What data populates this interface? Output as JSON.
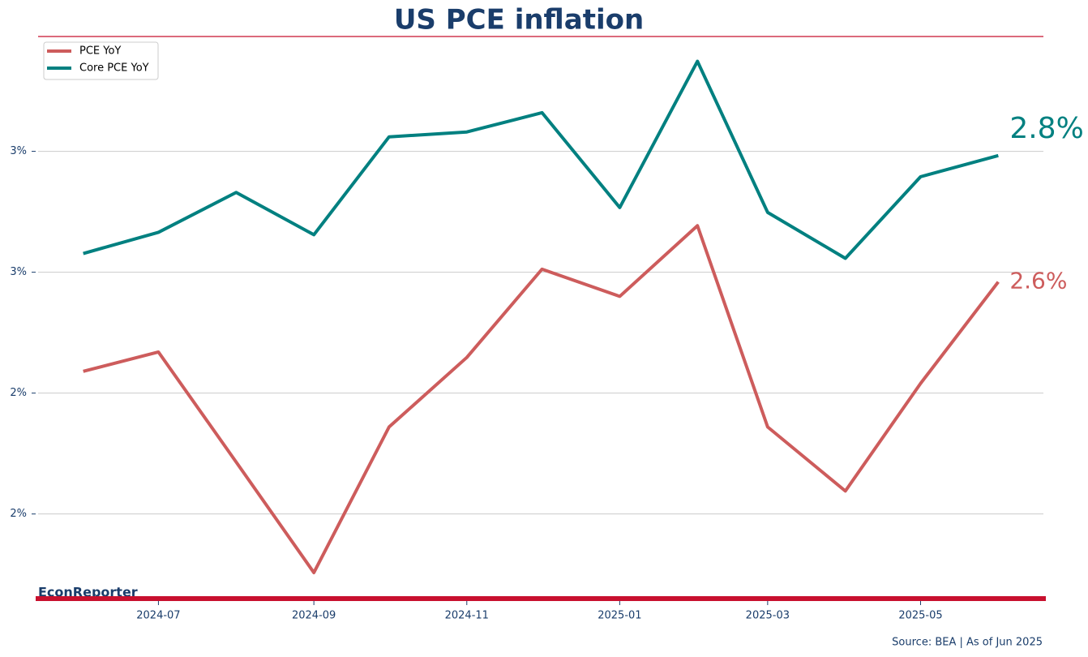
{
  "chart_data": {
    "type": "line",
    "title": "US PCE inflation",
    "x": [
      "2024-06",
      "2024-07",
      "2024-08",
      "2024-09",
      "2024-10",
      "2024-11",
      "2024-12",
      "2025-01",
      "2025-02",
      "2025-03",
      "2025-04",
      "2025-05",
      "2025-06"
    ],
    "series": [
      {
        "name": "PCE YoY",
        "color": "#cd5c5c",
        "values": [
          2.436,
          2.468,
          2.286,
          2.103,
          2.344,
          2.459,
          2.605,
          2.56,
          2.677,
          2.344,
          2.238,
          2.416,
          2.584
        ],
        "end_label": "2.6%"
      },
      {
        "name": "Core PCE YoY",
        "color": "#008080",
        "values": [
          2.631,
          2.666,
          2.732,
          2.662,
          2.824,
          2.832,
          2.864,
          2.707,
          2.949,
          2.699,
          2.623,
          2.758,
          2.793
        ],
        "end_label": "2.8%"
      }
    ],
    "xlim": [
      "2024-05-14",
      "2025-06-19"
    ],
    "xticks": [
      "2024-07",
      "2024-09",
      "2024-11",
      "2025-01",
      "2025-03",
      "2025-05"
    ],
    "ylim": [
      2.06,
      2.99
    ],
    "yticks": [
      {
        "value": 2.2,
        "label": "2%"
      },
      {
        "value": 2.4,
        "label": "2%"
      },
      {
        "value": 2.6,
        "label": "3%"
      },
      {
        "value": 2.8,
        "label": "3%"
      }
    ],
    "grid": true,
    "legend": "upper left",
    "brand": "EconReporter",
    "source": "Source: BEA | As of Jun 2025"
  }
}
